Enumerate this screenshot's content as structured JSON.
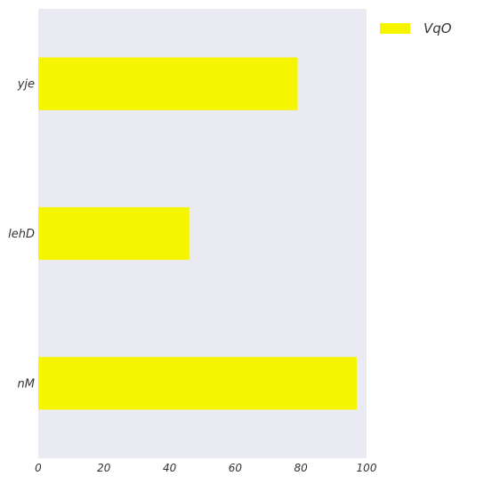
{
  "chart_data": {
    "type": "bar",
    "orientation": "horizontal",
    "categories": [
      "yje",
      "lehD",
      "nM"
    ],
    "series": [
      {
        "name": "VqO",
        "values": [
          79,
          46,
          97
        ],
        "color": "#f5f500"
      }
    ],
    "title": "",
    "xlabel": "",
    "ylabel": "",
    "xlim": [
      0,
      100
    ],
    "xticks": [
      "0",
      "20",
      "40",
      "60",
      "80",
      "100"
    ],
    "grid": false,
    "legend_position": "top-right",
    "plot_background": "#eaeaf2"
  }
}
